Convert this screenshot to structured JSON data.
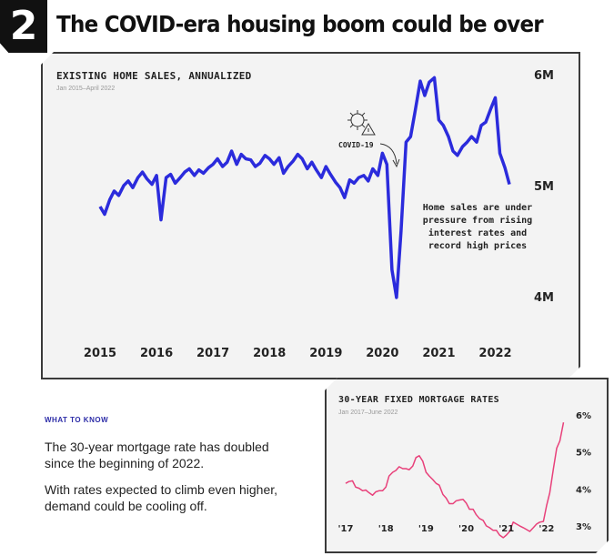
{
  "badge": "2",
  "headline": "The COVID-era housing boom could be over",
  "sales_panel": {
    "title": "EXISTING HOME SALES, ANNUALIZED",
    "subtitle": "Jan 2015–April 2022",
    "covid_label": "COVID-19",
    "annotation": [
      "Home sales are under",
      "pressure from rising",
      "interest rates and",
      "record high prices"
    ],
    "line_color": "#2b2bdc"
  },
  "rates_panel": {
    "title": "30-YEAR FIXED MORTGAGE RATES",
    "subtitle": "Jan 2017–June 2022",
    "line_color": "#e8407a"
  },
  "what_to_know": {
    "label": "WHAT TO KNOW",
    "para1": "The 30-year mortgage rate has doubled since the beginning of 2022.",
    "para2": "With rates expected to climb even higher, demand could be cooling off."
  },
  "chart_data": [
    {
      "type": "line",
      "title": "EXISTING HOME SALES, ANNUALIZED",
      "subtitle": "Jan 2015–April 2022",
      "xlabel": "",
      "ylabel": "",
      "ylim": [
        4.0,
        6.0
      ],
      "xlim": [
        2015.0,
        2022.33
      ],
      "yticks": [
        "4M",
        "5M",
        "6M"
      ],
      "ytick_values": [
        4.0,
        5.0,
        6.0
      ],
      "xticks": [
        "2015",
        "2016",
        "2017",
        "2018",
        "2019",
        "2020",
        "2021",
        "2022"
      ],
      "xtick_values": [
        2015,
        2016,
        2017,
        2018,
        2019,
        2020,
        2021,
        2022
      ],
      "series": [
        {
          "name": "Existing home sales (millions, annualized)",
          "x": [
            2015.0,
            2015.08,
            2015.17,
            2015.25,
            2015.33,
            2015.42,
            2015.5,
            2015.58,
            2015.67,
            2015.75,
            2015.83,
            2015.92,
            2016.0,
            2016.08,
            2016.17,
            2016.25,
            2016.33,
            2016.42,
            2016.5,
            2016.58,
            2016.67,
            2016.75,
            2016.83,
            2016.92,
            2017.0,
            2017.08,
            2017.17,
            2017.25,
            2017.33,
            2017.42,
            2017.5,
            2017.58,
            2017.67,
            2017.75,
            2017.83,
            2017.92,
            2018.0,
            2018.08,
            2018.17,
            2018.25,
            2018.33,
            2018.42,
            2018.5,
            2018.58,
            2018.67,
            2018.75,
            2018.83,
            2018.92,
            2019.0,
            2019.08,
            2019.17,
            2019.25,
            2019.33,
            2019.42,
            2019.5,
            2019.58,
            2019.67,
            2019.75,
            2019.83,
            2019.92,
            2020.0,
            2020.08,
            2020.17,
            2020.25,
            2020.33,
            2020.42,
            2020.5,
            2020.58,
            2020.67,
            2020.75,
            2020.83,
            2020.92,
            2021.0,
            2021.08,
            2021.17,
            2021.25,
            2021.33,
            2021.42,
            2021.5,
            2021.58,
            2021.67,
            2021.75,
            2021.83,
            2021.92,
            2022.0,
            2022.08,
            2022.17,
            2022.25
          ],
          "values": [
            4.82,
            4.75,
            4.88,
            4.96,
            4.92,
            5.01,
            5.05,
            4.99,
            5.08,
            5.13,
            5.07,
            5.02,
            5.1,
            4.7,
            5.08,
            5.11,
            5.03,
            5.08,
            5.13,
            5.16,
            5.1,
            5.15,
            5.12,
            5.17,
            5.2,
            5.25,
            5.18,
            5.22,
            5.32,
            5.2,
            5.29,
            5.25,
            5.24,
            5.18,
            5.21,
            5.28,
            5.25,
            5.2,
            5.26,
            5.12,
            5.18,
            5.23,
            5.29,
            5.25,
            5.16,
            5.22,
            5.15,
            5.08,
            5.18,
            5.11,
            5.04,
            4.99,
            4.9,
            5.06,
            5.03,
            5.08,
            5.1,
            5.05,
            5.16,
            5.1,
            5.3,
            5.2,
            4.25,
            4.0,
            4.6,
            5.4,
            5.45,
            5.68,
            5.95,
            5.82,
            5.94,
            5.98,
            5.6,
            5.55,
            5.45,
            5.32,
            5.28,
            5.36,
            5.4,
            5.45,
            5.4,
            5.55,
            5.58,
            5.7,
            5.8,
            5.3,
            5.17,
            5.02
          ]
        }
      ]
    },
    {
      "type": "line",
      "title": "30-YEAR FIXED MORTGAGE RATES",
      "subtitle": "Jan 2017–June 2022",
      "xlabel": "",
      "ylabel": "",
      "ylim": [
        2.8,
        6.2
      ],
      "xlim": [
        2017.0,
        2022.5
      ],
      "yticks": [
        "3%",
        "4%",
        "5%",
        "6%"
      ],
      "ytick_values": [
        3,
        4,
        5,
        6
      ],
      "xticks": [
        "'17",
        "'18",
        "'19",
        "'20",
        "'21",
        "'22"
      ],
      "xtick_values": [
        2017,
        2018,
        2019,
        2020,
        2021,
        2022
      ],
      "series": [
        {
          "name": "30-year fixed mortgage rate (%)",
          "x": [
            2017.0,
            2017.08,
            2017.17,
            2017.25,
            2017.33,
            2017.42,
            2017.5,
            2017.58,
            2017.67,
            2017.75,
            2017.83,
            2017.92,
            2018.0,
            2018.08,
            2018.17,
            2018.25,
            2018.33,
            2018.42,
            2018.5,
            2018.58,
            2018.67,
            2018.75,
            2018.83,
            2018.92,
            2019.0,
            2019.08,
            2019.17,
            2019.25,
            2019.33,
            2019.42,
            2019.5,
            2019.58,
            2019.67,
            2019.75,
            2019.83,
            2019.92,
            2020.0,
            2020.08,
            2020.17,
            2020.25,
            2020.33,
            2020.42,
            2020.5,
            2020.58,
            2020.67,
            2020.75,
            2020.83,
            2020.92,
            2021.0,
            2021.08,
            2021.17,
            2021.25,
            2021.33,
            2021.42,
            2021.5,
            2021.58,
            2021.67,
            2021.75,
            2021.83,
            2021.92,
            2022.0,
            2022.08,
            2022.17,
            2022.25,
            2022.33,
            2022.42
          ],
          "values": [
            4.15,
            4.2,
            4.22,
            4.05,
            4.02,
            3.95,
            3.97,
            3.9,
            3.83,
            3.92,
            3.95,
            3.95,
            4.05,
            4.35,
            4.45,
            4.5,
            4.6,
            4.55,
            4.55,
            4.52,
            4.62,
            4.85,
            4.9,
            4.75,
            4.45,
            4.35,
            4.25,
            4.15,
            4.1,
            3.85,
            3.75,
            3.6,
            3.6,
            3.68,
            3.7,
            3.72,
            3.62,
            3.45,
            3.45,
            3.3,
            3.2,
            3.15,
            3.0,
            2.95,
            2.88,
            2.88,
            2.75,
            2.68,
            2.75,
            2.85,
            3.1,
            3.05,
            3.0,
            2.95,
            2.9,
            2.85,
            2.95,
            3.05,
            3.1,
            3.12,
            3.55,
            3.9,
            4.55,
            5.1,
            5.3,
            5.8
          ]
        }
      ]
    }
  ]
}
